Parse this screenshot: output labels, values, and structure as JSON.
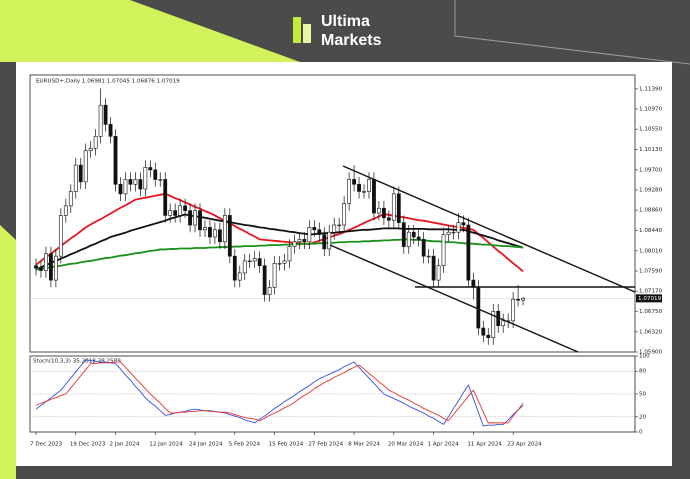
{
  "brand": {
    "line1": "Ultima",
    "line2": "Markets"
  },
  "chart_data": [
    {
      "type": "candlestick",
      "title": "EURUSD+,Daily 1.06981 1.07045 1.06876 1.07019",
      "categories": [
        "7 Dec 2023",
        null,
        null,
        null,
        null,
        null,
        null,
        null,
        "19 Dec 2023",
        null,
        null,
        null,
        null,
        null,
        null,
        null,
        "2 Jan 2024",
        null,
        null,
        null,
        null,
        null,
        null,
        null,
        "12 Jan 2024",
        null,
        null,
        null,
        null,
        null,
        null,
        null,
        "24 Jan 2024",
        null,
        null,
        null,
        null,
        null,
        null,
        null,
        "5 Feb 2024",
        null,
        null,
        null,
        null,
        null,
        null,
        null,
        "15 Feb 2024",
        null,
        null,
        null,
        null,
        null,
        null,
        null,
        "27 Feb 2024",
        null,
        null,
        null,
        null,
        null,
        null,
        null,
        "8 Mar 2024",
        null,
        null,
        null,
        null,
        null,
        null,
        null,
        "20 Mar 2024",
        null,
        null,
        null,
        null,
        null,
        null,
        null,
        "1 Apr 2024",
        null,
        null,
        null,
        null,
        null,
        null,
        null,
        "11 Apr 2024",
        null,
        null,
        null,
        null,
        null,
        null,
        null,
        "23 Apr 2024",
        null,
        null
      ],
      "open": [
        1.077,
        1.0765,
        1.076,
        1.0795,
        1.074,
        1.079,
        1.0875,
        1.0895,
        1.0925,
        1.098,
        1.0945,
        1.101,
        1.1015,
        1.104,
        1.1105,
        1.1065,
        1.104,
        1.094,
        1.092,
        1.095,
        1.094,
        1.095,
        1.093,
        1.0975,
        1.097,
        1.095,
        1.095,
        1.0875,
        1.0885,
        1.0875,
        1.0895,
        1.0885,
        1.0855,
        1.0885,
        1.0845,
        1.085,
        1.083,
        1.0845,
        1.082,
        1.0875,
        1.079,
        1.074,
        1.0755,
        1.078,
        1.078,
        1.0785,
        1.077,
        1.071,
        1.0725,
        1.0775,
        1.0775,
        1.078,
        1.081,
        1.082,
        1.0825,
        1.082,
        1.085,
        1.0845,
        1.0835,
        1.0805,
        1.084,
        1.0855,
        1.0855,
        1.09,
        1.095,
        1.094,
        1.0925,
        1.0925,
        1.095,
        1.088,
        1.089,
        1.087,
        1.0865,
        1.092,
        1.086,
        1.081,
        1.084,
        1.083,
        1.0825,
        1.079,
        1.079,
        1.074,
        1.077,
        1.0835,
        1.084,
        1.084,
        1.086,
        1.0855,
        1.074,
        1.0725,
        1.064,
        1.0625,
        1.062,
        1.0675,
        1.0645,
        1.0655,
        1.0655,
        1.07,
        1.06981
      ],
      "high": [
        1.0785,
        1.078,
        1.081,
        1.081,
        1.0805,
        1.089,
        1.091,
        1.094,
        1.0995,
        1.0995,
        1.1025,
        1.103,
        1.1055,
        1.114,
        1.112,
        1.108,
        1.1055,
        1.0955,
        1.0965,
        1.0965,
        1.0965,
        1.0965,
        1.099,
        1.099,
        1.0985,
        1.0965,
        1.0965,
        1.09,
        1.09,
        1.091,
        1.091,
        1.09,
        1.09,
        1.09,
        1.0865,
        1.0865,
        1.086,
        1.086,
        1.089,
        1.089,
        1.0805,
        1.077,
        1.0795,
        1.0795,
        1.08,
        1.08,
        1.0785,
        1.074,
        1.079,
        1.079,
        1.0795,
        1.0825,
        1.0835,
        1.084,
        1.084,
        1.0865,
        1.0865,
        1.086,
        1.085,
        1.0855,
        1.087,
        1.087,
        1.0915,
        1.0965,
        1.098,
        1.0955,
        1.094,
        1.0965,
        1.0965,
        1.0905,
        1.0905,
        1.0885,
        1.0935,
        1.0935,
        1.0875,
        1.0855,
        1.0855,
        1.0845,
        1.084,
        1.0805,
        1.0805,
        1.0785,
        1.085,
        1.0855,
        1.0855,
        1.088,
        1.0875,
        1.087,
        1.0755,
        1.074,
        1.0655,
        1.064,
        1.069,
        1.069,
        1.067,
        1.067,
        1.0715,
        1.073,
        1.07045
      ],
      "low": [
        1.075,
        1.0745,
        1.0745,
        1.0725,
        1.0725,
        1.0775,
        1.086,
        1.088,
        1.091,
        1.093,
        1.093,
        1.0995,
        1.1,
        1.1025,
        1.105,
        1.1025,
        1.0925,
        1.0905,
        1.0905,
        1.0925,
        1.0925,
        1.0915,
        1.0915,
        1.0955,
        1.0935,
        1.0935,
        1.086,
        1.086,
        1.086,
        1.086,
        1.087,
        1.084,
        1.084,
        1.083,
        1.083,
        1.0815,
        1.0815,
        1.0805,
        1.0805,
        1.0775,
        1.0725,
        1.0725,
        1.074,
        1.0765,
        1.0765,
        1.0755,
        1.0695,
        1.0695,
        1.071,
        1.076,
        1.076,
        1.0765,
        1.0795,
        1.0805,
        1.0805,
        1.0805,
        1.083,
        1.082,
        1.079,
        1.079,
        1.0825,
        1.084,
        1.084,
        1.0885,
        1.0925,
        1.091,
        1.091,
        1.091,
        1.0865,
        1.0865,
        1.0855,
        1.085,
        1.085,
        1.0845,
        1.0795,
        1.0795,
        1.0815,
        1.081,
        1.0775,
        1.0775,
        1.0725,
        1.0725,
        1.0755,
        1.082,
        1.0825,
        1.0825,
        1.084,
        1.0725,
        1.07,
        1.0625,
        1.061,
        1.0605,
        1.0605,
        1.063,
        1.063,
        1.064,
        1.064,
        1.0685,
        1.06876
      ],
      "close": [
        1.0765,
        1.076,
        1.0795,
        1.074,
        1.079,
        1.0875,
        1.0895,
        1.0925,
        1.098,
        1.0945,
        1.101,
        1.1015,
        1.104,
        1.1105,
        1.1065,
        1.104,
        1.094,
        1.092,
        1.095,
        1.094,
        1.095,
        1.093,
        1.0975,
        1.097,
        1.095,
        1.095,
        1.0875,
        1.0885,
        1.0875,
        1.0895,
        1.0885,
        1.0855,
        1.0885,
        1.0845,
        1.085,
        1.083,
        1.0845,
        1.082,
        1.0875,
        1.079,
        1.074,
        1.0755,
        1.078,
        1.078,
        1.0785,
        1.077,
        1.071,
        1.0725,
        1.0775,
        1.0775,
        1.078,
        1.081,
        1.082,
        1.0825,
        1.082,
        1.085,
        1.0845,
        1.0835,
        1.0805,
        1.084,
        1.0855,
        1.0855,
        1.09,
        1.095,
        1.094,
        1.0925,
        1.0925,
        1.095,
        1.088,
        1.089,
        1.087,
        1.0865,
        1.092,
        1.086,
        1.081,
        1.084,
        1.083,
        1.0825,
        1.079,
        1.079,
        1.074,
        1.077,
        1.0835,
        1.084,
        1.084,
        1.086,
        1.0855,
        1.074,
        1.0725,
        1.064,
        1.0625,
        1.062,
        1.0675,
        1.0645,
        1.0655,
        1.0655,
        1.07,
        1.06981,
        1.07019
      ],
      "series": [
        {
          "color": "#e8141c",
          "values": [
            1.0772,
            1.078,
            1.0788,
            1.0795,
            1.0803,
            1.0811,
            1.0819,
            1.0827,
            1.0834,
            1.0842,
            1.085,
            1.0856,
            1.0862,
            1.0867,
            1.0873,
            1.0879,
            1.0885,
            1.0891,
            1.0896,
            1.0902,
            1.0908,
            1.091,
            1.0912,
            1.0914,
            1.0916,
            1.0918,
            1.092,
            1.0916,
            1.0911,
            1.0907,
            1.0902,
            1.0898,
            1.0893,
            1.0889,
            1.0884,
            1.088,
            1.0875,
            1.0869,
            1.0864,
            1.0858,
            1.0853,
            1.0847,
            1.0842,
            1.0836,
            1.0831,
            1.0825,
            1.0824,
            1.0823,
            1.0822,
            1.0821,
            1.082,
            1.0819,
            1.0818,
            1.0817,
            1.0816,
            1.0815,
            1.0819,
            1.0822,
            1.0826,
            1.0829,
            1.0833,
            1.0836,
            1.084,
            1.0845,
            1.0849,
            1.0854,
            1.0859,
            1.0864,
            1.0868,
            1.0873,
            1.0878,
            1.0876,
            1.0874,
            1.0873,
            1.0871,
            1.0869,
            1.0867,
            1.0865,
            1.0864,
            1.0862,
            1.086,
            1.0858,
            1.0856,
            1.0854,
            1.0852,
            1.0851,
            1.0849,
            1.0847,
            1.0845,
            1.0836,
            1.0828,
            1.0819,
            1.081,
            1.0801,
            1.0793,
            1.0784,
            1.0775,
            1.0767,
            1.0758
          ]
        },
        {
          "color": "#111111",
          "values": [
            1.0762,
            1.0767,
            1.0771,
            1.0776,
            1.078,
            1.0785,
            1.0789,
            1.0794,
            1.0798,
            1.0803,
            1.0807,
            1.0812,
            1.0816,
            1.0821,
            1.0825,
            1.083,
            1.0833,
            1.0836,
            1.0839,
            1.0843,
            1.0846,
            1.0849,
            1.0852,
            1.0855,
            1.0858,
            1.0861,
            1.0864,
            1.0868,
            1.0871,
            1.0874,
            1.0877,
            1.0875,
            1.0873,
            1.0872,
            1.087,
            1.0868,
            1.0866,
            1.0864,
            1.0863,
            1.0861,
            1.0859,
            1.0857,
            1.0855,
            1.0854,
            1.0852,
            1.085,
            1.0849,
            1.0847,
            1.0846,
            1.0844,
            1.0843,
            1.0841,
            1.084,
            1.0838,
            1.0837,
            1.0835,
            1.0836,
            1.0837,
            1.0838,
            1.0838,
            1.0839,
            1.084,
            1.0841,
            1.0842,
            1.0843,
            1.0844,
            1.0845,
            1.0845,
            1.0846,
            1.0847,
            1.0848,
            1.0848,
            1.0848,
            1.0848,
            1.0847,
            1.0847,
            1.0847,
            1.0847,
            1.0847,
            1.0846,
            1.0846,
            1.0846,
            1.0846,
            1.0846,
            1.0845,
            1.0845,
            1.0845,
            1.0842,
            1.0839,
            1.0836,
            1.0833,
            1.083,
            1.0827,
            1.0823,
            1.082,
            1.0817,
            1.0814,
            1.0811,
            1.0808
          ]
        },
        {
          "color": "#1a8f1a",
          "values": [
            1.0762,
            1.0764,
            1.0765,
            1.0767,
            1.0769,
            1.077,
            1.0772,
            1.0774,
            1.0775,
            1.0777,
            1.0779,
            1.078,
            1.0782,
            1.0784,
            1.0786,
            1.0787,
            1.0789,
            1.0791,
            1.0792,
            1.0794,
            1.0796,
            1.0797,
            1.0799,
            1.0801,
            1.0802,
            1.0804,
            1.0804,
            1.0805,
            1.0805,
            1.0806,
            1.0806,
            1.0806,
            1.0807,
            1.0807,
            1.0807,
            1.0808,
            1.0808,
            1.0809,
            1.0809,
            1.0809,
            1.081,
            1.081,
            1.0811,
            1.0811,
            1.0811,
            1.0812,
            1.0812,
            1.0813,
            1.0813,
            1.0813,
            1.0814,
            1.0814,
            1.0815,
            1.0815,
            1.0816,
            1.0816,
            1.0816,
            1.0817,
            1.0817,
            1.0818,
            1.0818,
            1.0819,
            1.0819,
            1.082,
            1.082,
            1.082,
            1.0821,
            1.0821,
            1.0822,
            1.0822,
            1.0823,
            1.0823,
            1.0824,
            1.0824,
            1.0825,
            1.0825,
            1.0824,
            1.0824,
            1.0823,
            1.0822,
            1.0821,
            1.0821,
            1.082,
            1.0819,
            1.0819,
            1.0818,
            1.0817,
            1.0816,
            1.0816,
            1.0815,
            1.0814,
            1.0814,
            1.0813,
            1.0812,
            1.0811,
            1.0811,
            1.081,
            1.0809,
            1.0808
          ]
        }
      ],
      "ylim": [
        1.059,
        1.1168
      ],
      "yticks": [
        {
          "value": 1.1139,
          "label": "1.11390"
        },
        {
          "value": 1.1097,
          "label": "1.10970"
        },
        {
          "value": 1.1055,
          "label": "1.10550"
        },
        {
          "value": 1.1013,
          "label": "1.10130"
        },
        {
          "value": 1.097,
          "label": "1.09700"
        },
        {
          "value": 1.0928,
          "label": "1.09280"
        },
        {
          "value": 1.0886,
          "label": "1.08860"
        },
        {
          "value": 1.0844,
          "label": "1.08440"
        },
        {
          "value": 1.0801,
          "label": "1.08010"
        },
        {
          "value": 1.0759,
          "label": "1.07590"
        },
        {
          "value": 1.0717,
          "label": "1.07170"
        },
        {
          "value": 1.0675,
          "label": "1.06750"
        },
        {
          "value": 1.0632,
          "label": "1.06320"
        },
        {
          "value": 1.059,
          "label": "1.05900"
        }
      ],
      "price_marker": {
        "value": 1.07019,
        "label": "1.07019"
      }
    },
    {
      "type": "line",
      "title": "Stoch(10,3,3) 35.2818 38.2589",
      "series": [
        {
          "color": "#3250e6",
          "values": [
            30,
            35,
            40,
            45,
            50,
            55,
            63,
            71,
            79,
            87,
            95,
            94,
            93,
            92,
            92,
            91,
            90,
            83,
            75,
            68,
            60,
            53,
            45,
            39,
            34,
            28,
            22,
            23,
            25,
            26,
            27,
            29,
            30,
            29,
            28,
            28,
            27,
            26,
            25,
            23,
            21,
            19,
            16,
            14,
            12,
            17,
            21,
            26,
            31,
            35,
            40,
            44,
            48,
            53,
            57,
            61,
            66,
            70,
            73,
            76,
            79,
            82,
            86,
            89,
            92,
            85,
            78,
            71,
            64,
            57,
            50,
            47,
            44,
            41,
            38,
            34,
            31,
            28,
            25,
            21,
            18,
            14,
            10,
            20,
            31,
            41,
            52,
            62,
            44,
            26,
            8,
            9,
            9,
            10,
            10,
            16,
            23,
            29,
            35
          ]
        },
        {
          "color": "#e8322d",
          "values": [
            35,
            38,
            40,
            43,
            45,
            48,
            50,
            58,
            66,
            74,
            82,
            90,
            90,
            91,
            91,
            91,
            92,
            92,
            85,
            78,
            71,
            64,
            57,
            50,
            44,
            38,
            31,
            25,
            25,
            26,
            26,
            27,
            27,
            28,
            28,
            27,
            27,
            26,
            26,
            25,
            23,
            21,
            19,
            18,
            17,
            15,
            18,
            22,
            25,
            28,
            32,
            35,
            39,
            44,
            48,
            52,
            57,
            61,
            65,
            68,
            72,
            75,
            78,
            82,
            85,
            88,
            83,
            77,
            72,
            66,
            61,
            55,
            52,
            48,
            45,
            42,
            38,
            35,
            31,
            28,
            25,
            22,
            18,
            15,
            23,
            31,
            39,
            47,
            55,
            41,
            26,
            12,
            12,
            12,
            12,
            12,
            21,
            29,
            38
          ]
        }
      ],
      "ylim": [
        0,
        100
      ],
      "yticks": [
        0,
        20,
        50,
        80,
        100
      ]
    }
  ]
}
